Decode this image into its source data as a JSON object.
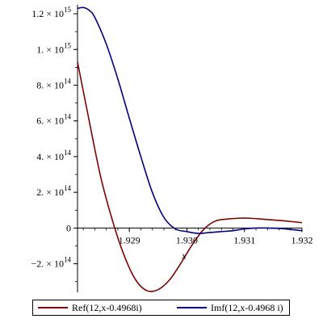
{
  "chart_data": {
    "type": "line",
    "title": "",
    "xlabel": "x",
    "ylabel": "",
    "xlim": [
      1.9281,
      1.932
    ],
    "ylim": [
      -360000000000000.0,
      1250000000000000.0
    ],
    "x_ticks": [
      {
        "value": 1.929,
        "label": "1.929"
      },
      {
        "value": 1.93,
        "label": "1.930"
      },
      {
        "value": 1.931,
        "label": "1.931"
      },
      {
        "value": 1.932,
        "label": "1.932"
      }
    ],
    "y_ticks": [
      {
        "value": 1200000000000000.0,
        "mant": "1.2 × 10",
        "exp": "15"
      },
      {
        "value": 1000000000000000.0,
        "mant": "1. × 10",
        "exp": "15"
      },
      {
        "value": 800000000000000.0,
        "mant": "8. × 10",
        "exp": "14"
      },
      {
        "value": 600000000000000.0,
        "mant": "6. × 10",
        "exp": "14"
      },
      {
        "value": 400000000000000.0,
        "mant": "4. × 10",
        "exp": "14"
      },
      {
        "value": 200000000000000.0,
        "mant": "2. × 10",
        "exp": "14"
      },
      {
        "value": 0,
        "mant": "0",
        "exp": ""
      },
      {
        "value": -200000000000000.0,
        "mant": "−2. × 10",
        "exp": "14"
      }
    ],
    "grid": false,
    "legend_position": "bottom",
    "series": [
      {
        "name": "Ref(12,x-0.4968i)",
        "color": "#800000",
        "x": [
          1.9281,
          1.9283,
          1.9285,
          1.9287,
          1.9289,
          1.9291,
          1.9293,
          1.9295,
          1.9297,
          1.9299,
          1.9301,
          1.9303,
          1.9305,
          1.9307,
          1.9309,
          1.9311,
          1.9313,
          1.9315,
          1.9317,
          1.932
        ],
        "y": [
          930000000000000.0,
          605000000000000.0,
          290000000000000.0,
          50000000000000.0,
          -145000000000000.0,
          -285000000000000.0,
          -350000000000000.0,
          -345000000000000.0,
          -290000000000000.0,
          -195000000000000.0,
          -90000000000000.0,
          -5000000000000.0,
          40000000000000.0,
          50000000000000.0,
          55000000000000.0,
          55000000000000.0,
          50000000000000.0,
          45000000000000.0,
          40000000000000.0,
          30000000000000.0
        ]
      },
      {
        "name": "Imf(12,x-0.4968 i)",
        "color": "#000080",
        "x": [
          1.9281,
          1.9282,
          1.9283,
          1.9284,
          1.9286,
          1.9288,
          1.929,
          1.9292,
          1.9294,
          1.9296,
          1.9298,
          1.93,
          1.9302,
          1.9304,
          1.9306,
          1.9308,
          1.931,
          1.9312,
          1.9314,
          1.9316,
          1.9318,
          1.932
        ],
        "y": [
          1230000000000000.0,
          1235000000000000.0,
          1220000000000000.0,
          1180000000000000.0,
          1030000000000000.0,
          835000000000000.0,
          615000000000000.0,
          400000000000000.0,
          200000000000000.0,
          60000000000000.0,
          -5000000000000.0,
          -20000000000000.0,
          -30000000000000.0,
          -25000000000000.0,
          -20000000000000.0,
          -15000000000000.0,
          -5000000000000.0,
          0.0,
          0.0,
          -2000000000000.0,
          -8000000000000.0,
          -15000000000000.0
        ]
      }
    ]
  }
}
